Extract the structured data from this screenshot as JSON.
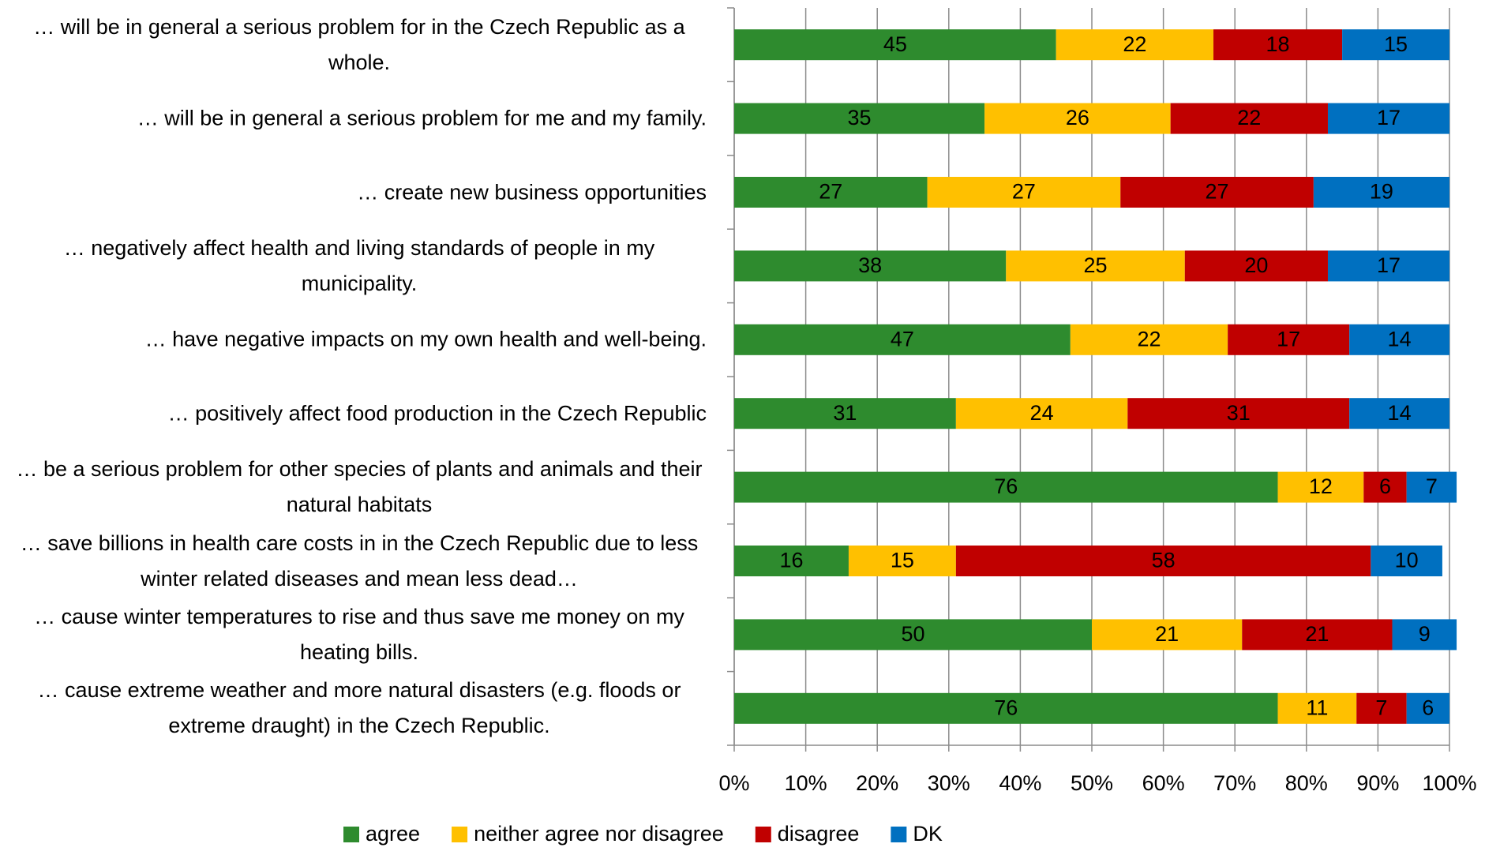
{
  "chart_data": {
    "type": "bar",
    "orientation": "horizontal",
    "stacked": true,
    "categories": [
      "… will be in general a serious problem for in the Czech Republic as a whole.",
      "… will be in general a serious problem for me and my family.",
      "… create new business opportunities",
      "… negatively affect health and living standards of people in my municipality.",
      "… have negative impacts on my own health and well-being.",
      "… positively affect food production in the Czech Republic",
      "… be a serious problem for other species of plants and animals and their natural habitats",
      "… save billions in health care costs in in the Czech Republic due to less winter related diseases and mean less dead…",
      "… cause winter temperatures to rise and thus save me money on my heating bills.",
      "… cause extreme weather and more natural disasters (e.g. floods or extreme draught) in the Czech Republic."
    ],
    "series": [
      {
        "name": "agree",
        "color": "#2e8b2e",
        "values": [
          45,
          35,
          27,
          38,
          47,
          31,
          76,
          16,
          50,
          76
        ]
      },
      {
        "name": "neither agree nor disagree",
        "color": "#ffc000",
        "values": [
          22,
          26,
          27,
          25,
          22,
          24,
          12,
          15,
          21,
          11
        ]
      },
      {
        "name": "disagree",
        "color": "#c00000",
        "values": [
          18,
          22,
          27,
          20,
          17,
          31,
          6,
          58,
          21,
          7
        ]
      },
      {
        "name": "DK",
        "color": "#0070c0",
        "values": [
          15,
          17,
          19,
          17,
          14,
          14,
          7,
          10,
          9,
          6
        ]
      }
    ],
    "xlim": [
      0,
      100
    ],
    "xticks": [
      {
        "value": 0,
        "label": "0%"
      },
      {
        "value": 10,
        "label": "10%"
      },
      {
        "value": 20,
        "label": "20%"
      },
      {
        "value": 30,
        "label": "30%"
      },
      {
        "value": 40,
        "label": "40%"
      },
      {
        "value": 50,
        "label": "50%"
      },
      {
        "value": 60,
        "label": "60%"
      },
      {
        "value": 70,
        "label": "70%"
      },
      {
        "value": 80,
        "label": "80%"
      },
      {
        "value": 90,
        "label": "90%"
      },
      {
        "value": 100,
        "label": "100%"
      }
    ],
    "grid": true,
    "legend": "bottom"
  }
}
